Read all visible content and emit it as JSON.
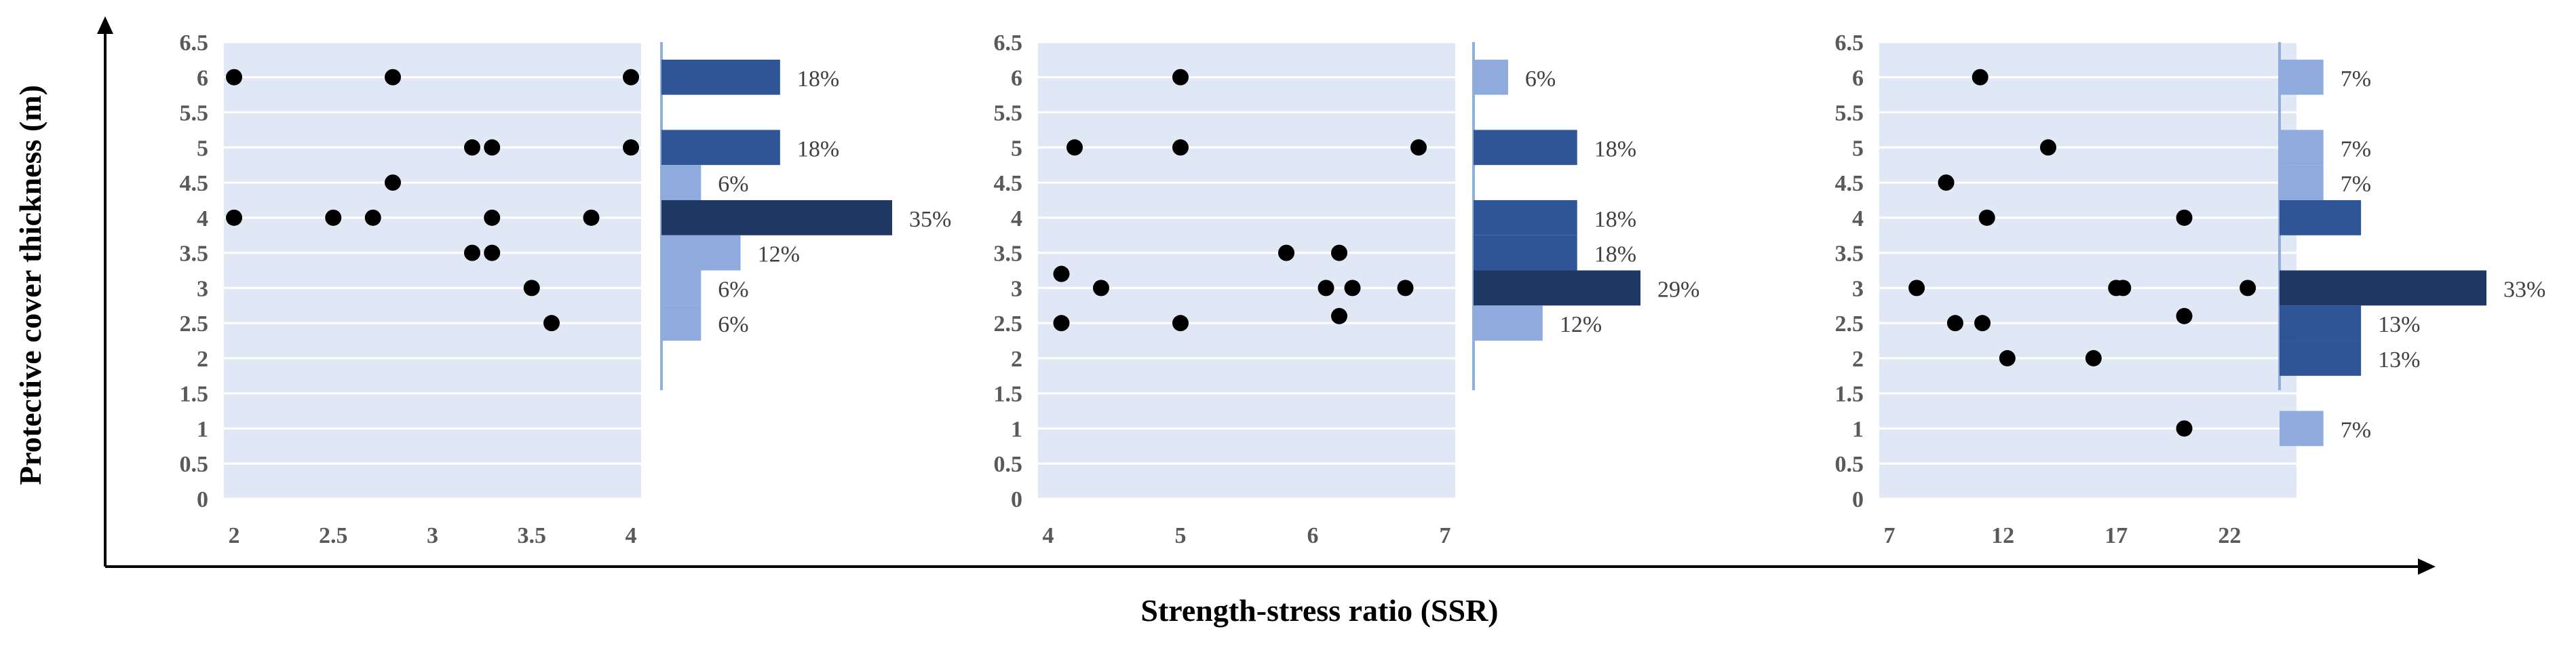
{
  "chart_data": {
    "type": "scatter",
    "xlabel": "Strength-stress ratio (SSR)",
    "ylabel": "Protective cover thickness (m)",
    "ylim": [
      0,
      6.5
    ],
    "yticks": [
      "0",
      "0.5",
      "1",
      "1.5",
      "2",
      "2.5",
      "3",
      "3.5",
      "4",
      "4.5",
      "5",
      "5.5",
      "6",
      "6.5"
    ],
    "panels": [
      {
        "xlim": [
          2,
          4
        ],
        "xticks": [
          "2",
          "2.5",
          "3",
          "3.5",
          "4"
        ],
        "points": [
          [
            2,
            6
          ],
          [
            2.8,
            6
          ],
          [
            4,
            6
          ],
          [
            3.2,
            5
          ],
          [
            3.3,
            5
          ],
          [
            4,
            5
          ],
          [
            2.8,
            4.5
          ],
          [
            2,
            4
          ],
          [
            2.5,
            4
          ],
          [
            2.7,
            4
          ],
          [
            3.3,
            4
          ],
          [
            3.8,
            4
          ],
          [
            3.2,
            3.5
          ],
          [
            3.3,
            3.5
          ],
          [
            3.5,
            3
          ],
          [
            3.6,
            2.5
          ]
        ],
        "histogram": {
          "max_percent": 35,
          "bars": [
            {
              "y": 6,
              "percent": 18,
              "label": "18%",
              "tone": "mid"
            },
            {
              "y": 5,
              "percent": 18,
              "label": "18%",
              "tone": "mid"
            },
            {
              "y": 4.5,
              "percent": 6,
              "label": "6%",
              "tone": "light"
            },
            {
              "y": 4,
              "percent": 35,
              "label": "35%",
              "tone": "dark"
            },
            {
              "y": 3.5,
              "percent": 12,
              "label": "12%",
              "tone": "light"
            },
            {
              "y": 3,
              "percent": 6,
              "label": "6%",
              "tone": "light"
            },
            {
              "y": 2.5,
              "percent": 6,
              "label": "6%",
              "tone": "light"
            }
          ]
        }
      },
      {
        "xlim": [
          4,
          7
        ],
        "xticks": [
          "4",
          "5",
          "6",
          "7"
        ],
        "points": [
          [
            5,
            6
          ],
          [
            4.2,
            5
          ],
          [
            5,
            5
          ],
          [
            6.8,
            5
          ],
          [
            5.8,
            3.5
          ],
          [
            6.2,
            3.5
          ],
          [
            4.1,
            3.2
          ],
          [
            4.4,
            3
          ],
          [
            6.1,
            3
          ],
          [
            6.3,
            3
          ],
          [
            6.7,
            3
          ],
          [
            6.2,
            2.6
          ],
          [
            4.1,
            2.5
          ],
          [
            5,
            2.5
          ]
        ],
        "histogram": {
          "max_percent": 33,
          "bars": [
            {
              "y": 6,
              "percent": 6,
              "label": "6%",
              "tone": "light"
            },
            {
              "y": 5,
              "percent": 18,
              "label": "18%",
              "tone": "mid"
            },
            {
              "y": 4,
              "percent": 18,
              "label": "18%",
              "tone": "mid"
            },
            {
              "y": 3.5,
              "percent": 18,
              "label": "18%",
              "tone": "mid"
            },
            {
              "y": 3,
              "percent": 29,
              "label": "29%",
              "tone": "dark"
            },
            {
              "y": 2.5,
              "percent": 12,
              "label": "12%",
              "tone": "light"
            }
          ]
        }
      },
      {
        "xlim": [
          7,
          24.5
        ],
        "xticks": [
          "7",
          "12",
          "17",
          "22"
        ],
        "points": [
          [
            11,
            6
          ],
          [
            14,
            5
          ],
          [
            9.5,
            4.5
          ],
          [
            11.3,
            4
          ],
          [
            20,
            4
          ],
          [
            8.2,
            3
          ],
          [
            17,
            3
          ],
          [
            17.3,
            3
          ],
          [
            22.8,
            3
          ],
          [
            20,
            2.6
          ],
          [
            9.9,
            2.5
          ],
          [
            11.1,
            2.5
          ],
          [
            12.2,
            2
          ],
          [
            16,
            2
          ],
          [
            20,
            1
          ]
        ],
        "histogram": {
          "max_percent": 33,
          "bars": [
            {
              "y": 6,
              "percent": 7,
              "label": "7%",
              "tone": "light"
            },
            {
              "y": 5,
              "percent": 7,
              "label": "7%",
              "tone": "light"
            },
            {
              "y": 4.5,
              "percent": 7,
              "label": "7%",
              "tone": "light"
            },
            {
              "y": 4,
              "percent": 13,
              "label": "",
              "tone": "mid"
            },
            {
              "y": 3,
              "percent": 33,
              "label": "33%",
              "tone": "dark"
            },
            {
              "y": 2.5,
              "percent": 13,
              "label": "13%",
              "tone": "mid"
            },
            {
              "y": 2,
              "percent": 13,
              "label": "13%",
              "tone": "mid"
            },
            {
              "y": 1,
              "percent": 7,
              "label": "7%",
              "tone": "light"
            }
          ]
        }
      }
    ]
  },
  "colors": {
    "plot_bg": "#dfe8f4",
    "grid": "#ffffff",
    "marker": "#000000",
    "separator": "#8fb0d8",
    "bar_dark": "#203864",
    "bar_mid": "#2f5597",
    "bar_light": "#8faadc",
    "bar_lighter": "#b4c7e7"
  }
}
